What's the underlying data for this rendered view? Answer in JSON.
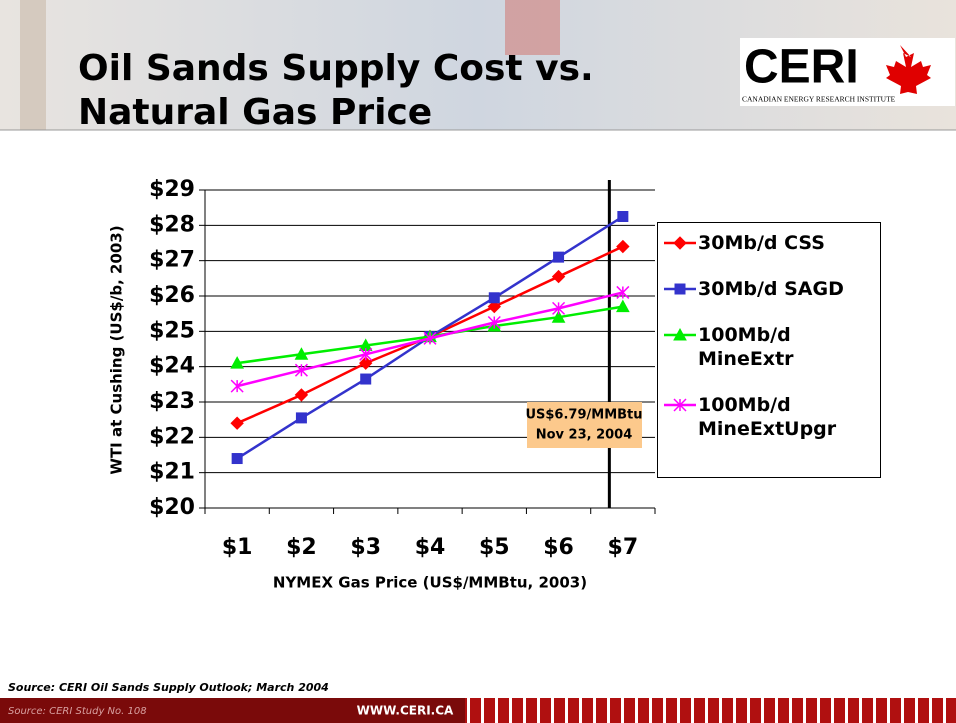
{
  "title": [
    "Oil Sands Supply Cost vs.",
    "Natural Gas Price"
  ],
  "logo": {
    "text": "CERI",
    "subtitle": "CANADIAN ENERGY RESEARCH INSTITUTE"
  },
  "source": "Source: CERI Oil Sands Supply Outlook; March 2004",
  "footer": {
    "left": "Source: CERI Study No. 108",
    "url": "WWW.CERI.CA"
  },
  "chart_data": {
    "type": "line",
    "x_label": "NYMEX Gas Price (US$/MMBtu, 2003)",
    "y_label": "WTI at Cushing (US$/b, 2003)",
    "categories": [
      "$1",
      "$2",
      "$3",
      "$4",
      "$5",
      "$6",
      "$7"
    ],
    "ylim": [
      20,
      29
    ],
    "yticks": [
      {
        "value": 20,
        "label": "$20"
      },
      {
        "value": 21,
        "label": "$21"
      },
      {
        "value": 22,
        "label": "$22"
      },
      {
        "value": 23,
        "label": "$23"
      },
      {
        "value": 24,
        "label": "$24"
      },
      {
        "value": 25,
        "label": "$25"
      },
      {
        "value": 26,
        "label": "$26"
      },
      {
        "value": 27,
        "label": "$27"
      },
      {
        "value": 28,
        "label": "$28"
      },
      {
        "value": 29,
        "label": "$29"
      }
    ],
    "grid": true,
    "legend": "right",
    "series": [
      {
        "name": "30Mb/d CSS",
        "color": "#ff0000",
        "marker": "diamond",
        "values": [
          22.4,
          23.2,
          24.1,
          24.85,
          25.7,
          26.55,
          27.4
        ]
      },
      {
        "name": "30Mb/d SAGD",
        "color": "#3333cc",
        "marker": "square",
        "values": [
          21.4,
          22.55,
          23.65,
          24.85,
          25.95,
          27.1,
          28.25
        ]
      },
      {
        "name": "100Mb/d MineExtr",
        "color": "#00ee00",
        "marker": "triangle",
        "values": [
          24.1,
          24.35,
          24.6,
          24.85,
          25.15,
          25.4,
          25.7
        ]
      },
      {
        "name": "100Mb/d MineExtUpgr",
        "color": "#ff00ff",
        "marker": "star",
        "values": [
          23.45,
          23.9,
          24.35,
          24.8,
          25.25,
          25.65,
          26.1
        ]
      }
    ],
    "reference_line": {
      "x": 6.79,
      "label": [
        "US$6.79/MMBtu",
        "Nov 23, 2004"
      ]
    }
  }
}
